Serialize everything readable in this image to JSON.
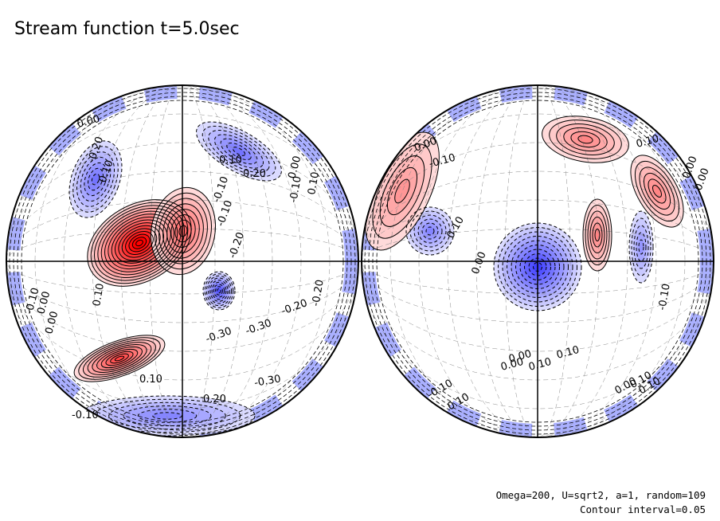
{
  "title": "Stream function t=5.0sec",
  "footer": {
    "line1": "Omega=200, U=sqrt2, a=1, random=109",
    "line2": "Contour interval=0.05"
  },
  "chart_data": {
    "type": "contour",
    "variable": "Stream function",
    "time": "t=5.0sec",
    "contour_interval": 0.05,
    "projection": "two orthographic hemispheres",
    "colors": {
      "positive": "#ff0000",
      "negative": "#0000ff",
      "zero": "#ffffff"
    },
    "hemispheres": [
      {
        "name": "left",
        "extrema": [
          {
            "sign": "positive",
            "strength": 0.75
          },
          {
            "sign": "positive",
            "strength": 0.5
          },
          {
            "sign": "positive",
            "strength": 0.4
          },
          {
            "sign": "negative",
            "strength": 0.45
          },
          {
            "sign": "negative",
            "strength": 0.35
          },
          {
            "sign": "negative",
            "strength": 0.35
          },
          {
            "sign": "negative",
            "strength": 0.3
          }
        ],
        "contour_labels": [
          "0.00",
          "-0.20",
          "0.10",
          "0.10",
          "0.20",
          "-0.10",
          "0.00",
          "-0.10",
          "0.10",
          "0.00",
          "-0.10",
          "0.00",
          "-0.20",
          "-0.30",
          "-0.20",
          "-0.30",
          "0.10",
          "-0.10",
          "0.20",
          "-0.20",
          "-0.30",
          "-0.10",
          "0.10"
        ]
      },
      {
        "name": "right",
        "extrema": [
          {
            "sign": "negative",
            "strength": 0.5
          },
          {
            "sign": "positive",
            "strength": 0.3
          },
          {
            "sign": "positive",
            "strength": 0.3
          },
          {
            "sign": "positive",
            "strength": 0.3
          },
          {
            "sign": "negative",
            "strength": 0.3
          },
          {
            "sign": "negative",
            "strength": 0.25
          },
          {
            "sign": "positive",
            "strength": 0.25
          }
        ],
        "contour_labels": [
          "0.00",
          "-0.10",
          "0.10",
          "0.00",
          "0.10",
          "0.00",
          "-0.10",
          "0.00",
          "0.00",
          "0.10",
          "0.00",
          "-0.10",
          "0.10",
          "0.10",
          "-0.10",
          "0.10",
          "0.00"
        ]
      }
    ]
  }
}
